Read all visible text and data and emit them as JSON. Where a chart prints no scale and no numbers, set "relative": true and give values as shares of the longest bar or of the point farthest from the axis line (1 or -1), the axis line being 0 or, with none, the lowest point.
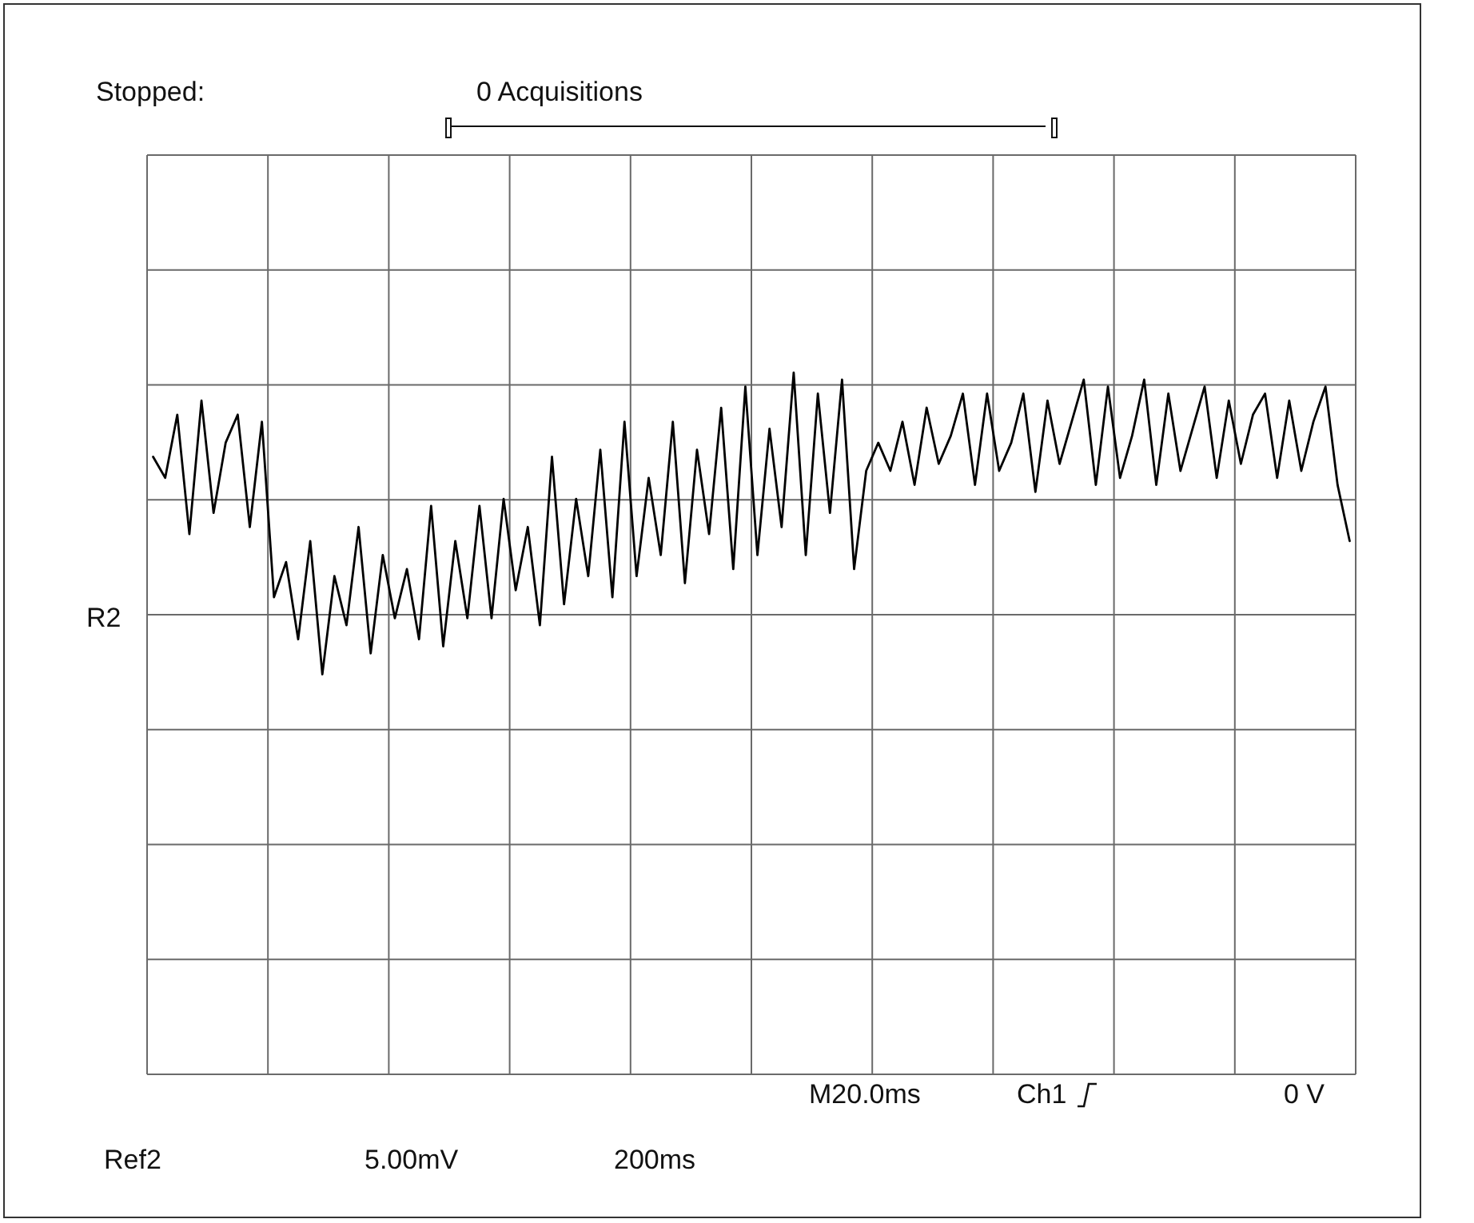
{
  "chart_data": {
    "type": "line",
    "relative": true,
    "grid": true,
    "categories": [
      null,
      null,
      null,
      null,
      null,
      null,
      null,
      null,
      null,
      null,
      null,
      null,
      null,
      null,
      null,
      null,
      null,
      null,
      null,
      null,
      null,
      null,
      null,
      null,
      null,
      null,
      null,
      null,
      null,
      null,
      null,
      null,
      null,
      null,
      null,
      null,
      null,
      null,
      null,
      null,
      null,
      null,
      null,
      null,
      null,
      null,
      null,
      null,
      null,
      null,
      null,
      null,
      null,
      null,
      null,
      null,
      null,
      null,
      null,
      null,
      null,
      null,
      null,
      null,
      null,
      null,
      null,
      null,
      null,
      null,
      null,
      null,
      null,
      null,
      null,
      null,
      null,
      null,
      null,
      null,
      null,
      null,
      null,
      null,
      null,
      null,
      null,
      null,
      null,
      null,
      null,
      null,
      null,
      null,
      null,
      null,
      null,
      null,
      null,
      null
    ],
    "series": [
      {
        "color": "#000000",
        "values": [
          0.88,
          0.85,
          0.94,
          0.77,
          0.96,
          0.8,
          0.9,
          0.94,
          0.78,
          0.93,
          0.68,
          0.73,
          0.62,
          0.76,
          0.57,
          0.71,
          0.64,
          0.78,
          0.6,
          0.74,
          0.65,
          0.72,
          0.62,
          0.81,
          0.61,
          0.76,
          0.65,
          0.81,
          0.65,
          0.82,
          0.69,
          0.78,
          0.64,
          0.88,
          0.67,
          0.82,
          0.71,
          0.89,
          0.68,
          0.93,
          0.71,
          0.85,
          0.74,
          0.93,
          0.7,
          0.89,
          0.77,
          0.95,
          0.72,
          0.98,
          0.74,
          0.92,
          0.78,
          1,
          0.74,
          0.97,
          0.8,
          0.99,
          0.72,
          0.86,
          0.9,
          0.86,
          0.93,
          0.84,
          0.95,
          0.87,
          0.91,
          0.97,
          0.84,
          0.97,
          0.86,
          0.9,
          0.97,
          0.83,
          0.96,
          0.87,
          0.93,
          0.99,
          0.84,
          0.98,
          0.85,
          0.91,
          0.99,
          0.84,
          0.97,
          0.86,
          0.92,
          0.98,
          0.85,
          0.96,
          0.87,
          0.94,
          0.97,
          0.85,
          0.96,
          0.86,
          0.93,
          0.98,
          0.84,
          0.76
        ]
      }
    ],
    "annotations": [
      "Stopped:",
      "0 Acquisitions",
      "R2",
      "M20.0ms",
      "Ch1",
      "0 V",
      "Ref2",
      "5.00mV",
      "200ms"
    ]
  }
}
